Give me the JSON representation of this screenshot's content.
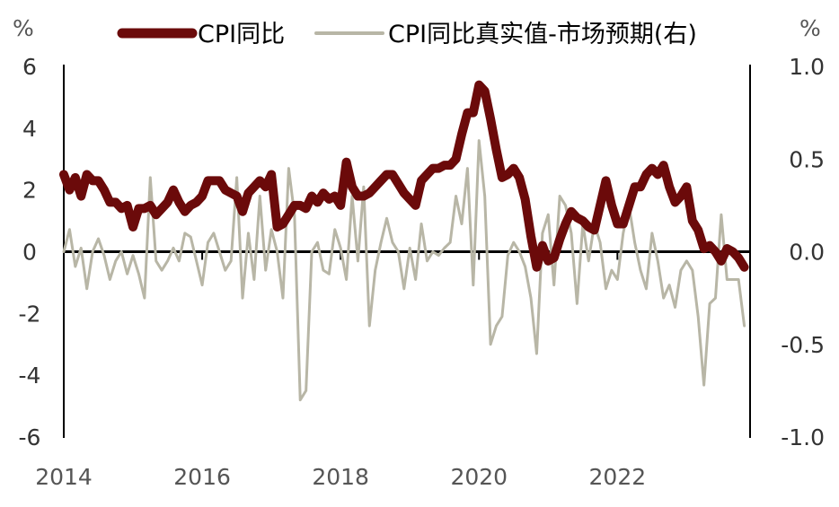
{
  "chart_data": {
    "type": "line",
    "title": "",
    "left_unit": "%",
    "right_unit": "%",
    "x_ticks": [
      "2014",
      "2016",
      "2018",
      "2020",
      "2022"
    ],
    "y_left": {
      "ticks": [
        "6",
        "4",
        "2",
        "0",
        "-2",
        "-4",
        "-6"
      ],
      "range": [
        -6,
        6
      ]
    },
    "y_right": {
      "ticks": [
        "1.0",
        "0.5",
        "0.0",
        "-0.5",
        "-1.0"
      ],
      "range": [
        -1.0,
        1.0
      ]
    },
    "x_range": [
      "2014-01",
      "2023-12"
    ],
    "grid": false,
    "legend_position": "top",
    "colors": {
      "cpi": "#6b0a0a",
      "real": "#b8b6a6",
      "axis": "#000000"
    },
    "series": [
      {
        "name": "CPI同比",
        "axis": "left",
        "color": "#6b0a0a",
        "points": [
          [
            "2014-01",
            2.5
          ],
          [
            "2014-02",
            2.0
          ],
          [
            "2014-03",
            2.4
          ],
          [
            "2014-04",
            1.8
          ],
          [
            "2014-05",
            2.5
          ],
          [
            "2014-06",
            2.3
          ],
          [
            "2014-07",
            2.3
          ],
          [
            "2014-08",
            2.0
          ],
          [
            "2014-09",
            1.6
          ],
          [
            "2014-10",
            1.6
          ],
          [
            "2014-11",
            1.4
          ],
          [
            "2014-12",
            1.5
          ],
          [
            "2015-01",
            0.8
          ],
          [
            "2015-02",
            1.4
          ],
          [
            "2015-03",
            1.4
          ],
          [
            "2015-04",
            1.5
          ],
          [
            "2015-05",
            1.2
          ],
          [
            "2015-06",
            1.4
          ],
          [
            "2015-07",
            1.6
          ],
          [
            "2015-08",
            2.0
          ],
          [
            "2015-09",
            1.6
          ],
          [
            "2015-10",
            1.3
          ],
          [
            "2015-11",
            1.5
          ],
          [
            "2015-12",
            1.6
          ],
          [
            "2016-01",
            1.8
          ],
          [
            "2016-02",
            2.3
          ],
          [
            "2016-03",
            2.3
          ],
          [
            "2016-04",
            2.3
          ],
          [
            "2016-05",
            2.0
          ],
          [
            "2016-06",
            1.9
          ],
          [
            "2016-07",
            1.8
          ],
          [
            "2016-08",
            1.3
          ],
          [
            "2016-09",
            1.9
          ],
          [
            "2016-10",
            2.1
          ],
          [
            "2016-11",
            2.3
          ],
          [
            "2016-12",
            2.1
          ],
          [
            "2017-01",
            2.5
          ],
          [
            "2017-02",
            0.8
          ],
          [
            "2017-03",
            0.9
          ],
          [
            "2017-04",
            1.2
          ],
          [
            "2017-05",
            1.5
          ],
          [
            "2017-06",
            1.5
          ],
          [
            "2017-07",
            1.4
          ],
          [
            "2017-08",
            1.8
          ],
          [
            "2017-09",
            1.6
          ],
          [
            "2017-10",
            1.9
          ],
          [
            "2017-11",
            1.7
          ],
          [
            "2017-12",
            1.8
          ],
          [
            "2018-01",
            1.5
          ],
          [
            "2018-02",
            2.9
          ],
          [
            "2018-03",
            2.1
          ],
          [
            "2018-04",
            1.8
          ],
          [
            "2018-05",
            1.8
          ],
          [
            "2018-06",
            1.9
          ],
          [
            "2018-07",
            2.1
          ],
          [
            "2018-08",
            2.3
          ],
          [
            "2018-09",
            2.5
          ],
          [
            "2018-10",
            2.5
          ],
          [
            "2018-11",
            2.2
          ],
          [
            "2018-12",
            1.9
          ],
          [
            "2019-01",
            1.7
          ],
          [
            "2019-02",
            1.5
          ],
          [
            "2019-03",
            2.3
          ],
          [
            "2019-04",
            2.5
          ],
          [
            "2019-05",
            2.7
          ],
          [
            "2019-06",
            2.7
          ],
          [
            "2019-07",
            2.8
          ],
          [
            "2019-08",
            2.8
          ],
          [
            "2019-09",
            3.0
          ],
          [
            "2019-10",
            3.8
          ],
          [
            "2019-11",
            4.5
          ],
          [
            "2019-12",
            4.5
          ],
          [
            "2020-01",
            5.4
          ],
          [
            "2020-02",
            5.2
          ],
          [
            "2020-03",
            4.3
          ],
          [
            "2020-04",
            3.3
          ],
          [
            "2020-05",
            2.4
          ],
          [
            "2020-06",
            2.5
          ],
          [
            "2020-07",
            2.7
          ],
          [
            "2020-08",
            2.4
          ],
          [
            "2020-09",
            1.7
          ],
          [
            "2020-10",
            0.5
          ],
          [
            "2020-11",
            -0.5
          ],
          [
            "2020-12",
            0.2
          ],
          [
            "2021-01",
            -0.3
          ],
          [
            "2021-02",
            -0.2
          ],
          [
            "2021-03",
            0.4
          ],
          [
            "2021-04",
            0.9
          ],
          [
            "2021-05",
            1.3
          ],
          [
            "2021-06",
            1.1
          ],
          [
            "2021-07",
            1.0
          ],
          [
            "2021-08",
            0.8
          ],
          [
            "2021-09",
            0.7
          ],
          [
            "2021-10",
            1.5
          ],
          [
            "2021-11",
            2.3
          ],
          [
            "2021-12",
            1.5
          ],
          [
            "2022-01",
            0.9
          ],
          [
            "2022-02",
            0.9
          ],
          [
            "2022-03",
            1.5
          ],
          [
            "2022-04",
            2.1
          ],
          [
            "2022-05",
            2.1
          ],
          [
            "2022-06",
            2.5
          ],
          [
            "2022-07",
            2.7
          ],
          [
            "2022-08",
            2.5
          ],
          [
            "2022-09",
            2.8
          ],
          [
            "2022-10",
            2.1
          ],
          [
            "2022-11",
            1.6
          ],
          [
            "2022-12",
            1.8
          ],
          [
            "2023-01",
            2.1
          ],
          [
            "2023-02",
            1.0
          ],
          [
            "2023-03",
            0.7
          ],
          [
            "2023-04",
            0.1
          ],
          [
            "2023-05",
            0.2
          ],
          [
            "2023-06",
            0.0
          ],
          [
            "2023-07",
            -0.3
          ],
          [
            "2023-08",
            0.1
          ],
          [
            "2023-09",
            0.0
          ],
          [
            "2023-10",
            -0.2
          ],
          [
            "2023-11",
            -0.5
          ]
        ]
      },
      {
        "name": "CPI同比真实值-市场预期(右)",
        "axis": "right",
        "color": "#b8b6a6",
        "points": [
          [
            "2014-01",
            0.0
          ],
          [
            "2014-02",
            0.12
          ],
          [
            "2014-03",
            -0.08
          ],
          [
            "2014-04",
            0.02
          ],
          [
            "2014-05",
            -0.2
          ],
          [
            "2014-06",
            0.0
          ],
          [
            "2014-07",
            0.07
          ],
          [
            "2014-08",
            -0.02
          ],
          [
            "2014-09",
            -0.15
          ],
          [
            "2014-10",
            -0.05
          ],
          [
            "2014-11",
            0.0
          ],
          [
            "2014-12",
            -0.12
          ],
          [
            "2015-01",
            -0.02
          ],
          [
            "2015-02",
            -0.12
          ],
          [
            "2015-03",
            -0.25
          ],
          [
            "2015-04",
            0.4
          ],
          [
            "2015-05",
            -0.05
          ],
          [
            "2015-06",
            -0.1
          ],
          [
            "2015-07",
            -0.05
          ],
          [
            "2015-08",
            0.02
          ],
          [
            "2015-09",
            -0.05
          ],
          [
            "2015-10",
            0.1
          ],
          [
            "2015-11",
            0.08
          ],
          [
            "2015-12",
            -0.05
          ],
          [
            "2016-01",
            -0.18
          ],
          [
            "2016-02",
            0.05
          ],
          [
            "2016-03",
            0.1
          ],
          [
            "2016-04",
            0.0
          ],
          [
            "2016-05",
            -0.1
          ],
          [
            "2016-06",
            -0.05
          ],
          [
            "2016-07",
            0.4
          ],
          [
            "2016-08",
            -0.25
          ],
          [
            "2016-09",
            0.1
          ],
          [
            "2016-10",
            -0.15
          ],
          [
            "2016-11",
            0.3
          ],
          [
            "2016-12",
            -0.1
          ],
          [
            "2017-01",
            0.12
          ],
          [
            "2017-02",
            0.0
          ],
          [
            "2017-03",
            -0.25
          ],
          [
            "2017-04",
            0.45
          ],
          [
            "2017-05",
            0.2
          ],
          [
            "2017-06",
            -0.8
          ],
          [
            "2017-07",
            -0.75
          ],
          [
            "2017-08",
            0.0
          ],
          [
            "2017-09",
            0.05
          ],
          [
            "2017-10",
            -0.1
          ],
          [
            "2017-11",
            -0.12
          ],
          [
            "2017-12",
            0.12
          ],
          [
            "2018-01",
            0.02
          ],
          [
            "2018-02",
            -0.15
          ],
          [
            "2018-03",
            0.3
          ],
          [
            "2018-04",
            -0.05
          ],
          [
            "2018-05",
            0.35
          ],
          [
            "2018-06",
            -0.4
          ],
          [
            "2018-07",
            -0.1
          ],
          [
            "2018-08",
            0.05
          ],
          [
            "2018-09",
            0.18
          ],
          [
            "2018-10",
            0.05
          ],
          [
            "2018-11",
            0.0
          ],
          [
            "2018-12",
            -0.2
          ],
          [
            "2019-01",
            0.02
          ],
          [
            "2019-02",
            -0.15
          ],
          [
            "2019-03",
            0.15
          ],
          [
            "2019-04",
            -0.05
          ],
          [
            "2019-05",
            0.0
          ],
          [
            "2019-06",
            -0.02
          ],
          [
            "2019-07",
            0.02
          ],
          [
            "2019-08",
            0.05
          ],
          [
            "2019-09",
            0.3
          ],
          [
            "2019-10",
            0.15
          ],
          [
            "2019-11",
            0.45
          ],
          [
            "2019-12",
            -0.18
          ],
          [
            "2020-01",
            0.6
          ],
          [
            "2020-02",
            0.3
          ],
          [
            "2020-03",
            -0.5
          ],
          [
            "2020-04",
            -0.4
          ],
          [
            "2020-05",
            -0.35
          ],
          [
            "2020-06",
            -0.02
          ],
          [
            "2020-07",
            0.05
          ],
          [
            "2020-08",
            0.0
          ],
          [
            "2020-09",
            -0.08
          ],
          [
            "2020-10",
            -0.25
          ],
          [
            "2020-11",
            -0.55
          ],
          [
            "2020-12",
            0.1
          ],
          [
            "2021-01",
            0.2
          ],
          [
            "2021-02",
            -0.18
          ],
          [
            "2021-03",
            0.3
          ],
          [
            "2021-04",
            0.25
          ],
          [
            "2021-05",
            0.1
          ],
          [
            "2021-06",
            -0.28
          ],
          [
            "2021-07",
            0.15
          ],
          [
            "2021-08",
            -0.05
          ],
          [
            "2021-09",
            0.15
          ],
          [
            "2021-10",
            0.05
          ],
          [
            "2021-11",
            -0.2
          ],
          [
            "2021-12",
            -0.1
          ],
          [
            "2022-01",
            -0.15
          ],
          [
            "2022-02",
            0.1
          ],
          [
            "2022-03",
            0.25
          ],
          [
            "2022-04",
            0.05
          ],
          [
            "2022-05",
            -0.1
          ],
          [
            "2022-06",
            -0.2
          ],
          [
            "2022-07",
            0.1
          ],
          [
            "2022-08",
            -0.05
          ],
          [
            "2022-09",
            -0.25
          ],
          [
            "2022-10",
            -0.18
          ],
          [
            "2022-11",
            -0.3
          ],
          [
            "2022-12",
            -0.1
          ],
          [
            "2023-01",
            -0.05
          ],
          [
            "2023-02",
            -0.1
          ],
          [
            "2023-03",
            -0.35
          ],
          [
            "2023-04",
            -0.72
          ],
          [
            "2023-05",
            -0.28
          ],
          [
            "2023-06",
            -0.25
          ],
          [
            "2023-07",
            0.2
          ],
          [
            "2023-08",
            -0.15
          ],
          [
            "2023-09",
            -0.15
          ],
          [
            "2023-10",
            -0.15
          ],
          [
            "2023-11",
            -0.4
          ]
        ]
      }
    ]
  }
}
